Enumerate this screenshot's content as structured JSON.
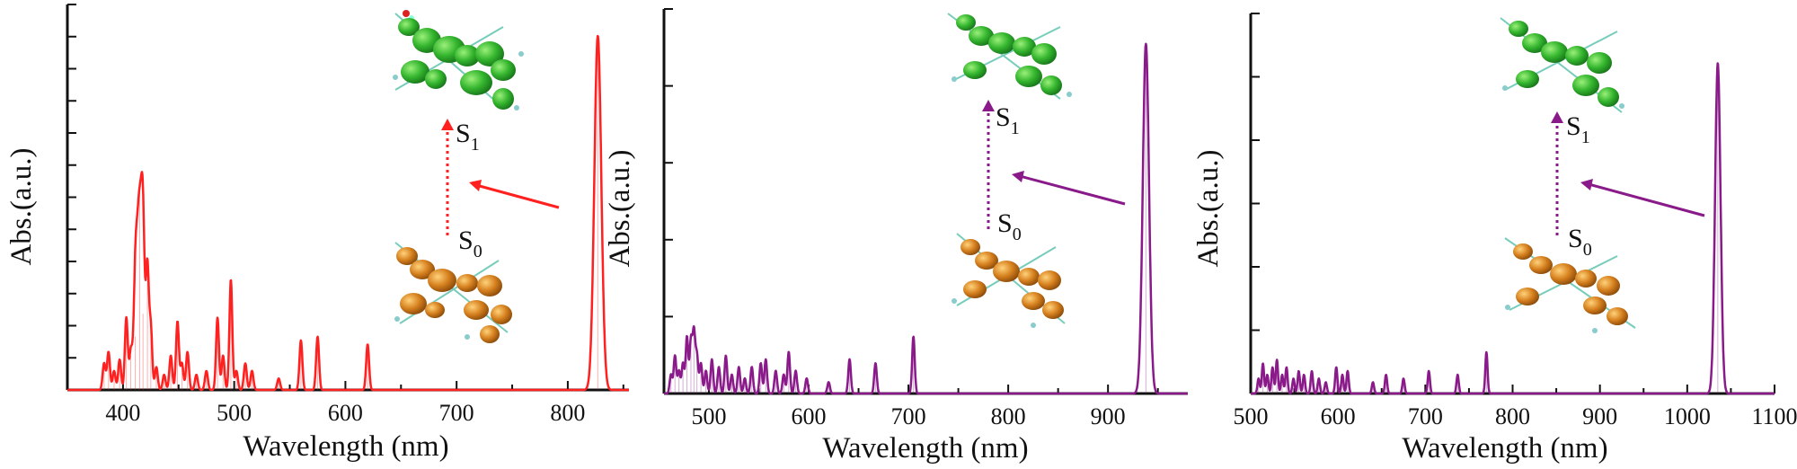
{
  "chart_data": [
    {
      "type": "line",
      "panel": "left",
      "xlabel": "Wavelength (nm)",
      "ylabel": "Abs.(a.u.)",
      "xlim": [
        350,
        855
      ],
      "ylim": [
        0,
        1.0
      ],
      "xticks": [
        400,
        500,
        600,
        700,
        800
      ],
      "y_tick_count": 12,
      "color": "#ff2020",
      "peaks": [
        {
          "x": 383,
          "h": 0.07
        },
        {
          "x": 387,
          "h": 0.1
        },
        {
          "x": 392,
          "h": 0.05
        },
        {
          "x": 397,
          "h": 0.08
        },
        {
          "x": 403,
          "h": 0.19
        },
        {
          "x": 407,
          "h": 0.09
        },
        {
          "x": 411,
          "h": 0.14
        },
        {
          "x": 415,
          "h": 0.52
        },
        {
          "x": 418,
          "h": 0.2
        },
        {
          "x": 422,
          "h": 0.29
        },
        {
          "x": 425,
          "h": 0.16
        },
        {
          "x": 430,
          "h": 0.06
        },
        {
          "x": 437,
          "h": 0.04
        },
        {
          "x": 443,
          "h": 0.09
        },
        {
          "x": 449,
          "h": 0.18
        },
        {
          "x": 453,
          "h": 0.07
        },
        {
          "x": 458,
          "h": 0.1
        },
        {
          "x": 466,
          "h": 0.04
        },
        {
          "x": 475,
          "h": 0.05
        },
        {
          "x": 485,
          "h": 0.19
        },
        {
          "x": 490,
          "h": 0.09
        },
        {
          "x": 497,
          "h": 0.29
        },
        {
          "x": 502,
          "h": 0.05
        },
        {
          "x": 510,
          "h": 0.07
        },
        {
          "x": 516,
          "h": 0.05
        },
        {
          "x": 540,
          "h": 0.03
        },
        {
          "x": 560,
          "h": 0.13
        },
        {
          "x": 575,
          "h": 0.14
        },
        {
          "x": 620,
          "h": 0.12
        },
        {
          "x": 827,
          "h": 0.93
        }
      ],
      "labels": {
        "ground": "S",
        "ground_sub": "0",
        "excited": "S",
        "excited_sub": "1"
      }
    },
    {
      "type": "line",
      "panel": "middle",
      "xlabel": "Wavelength (nm)",
      "ylabel": "Abs.(a.u.)",
      "xlim": [
        455,
        980
      ],
      "ylim": [
        0,
        1.0
      ],
      "xticks": [
        500,
        600,
        700,
        800,
        900
      ],
      "y_tick_count": 5,
      "color": "#8a1a8a",
      "peaks": [
        {
          "x": 462,
          "h": 0.05
        },
        {
          "x": 466,
          "h": 0.1
        },
        {
          "x": 470,
          "h": 0.06
        },
        {
          "x": 474,
          "h": 0.08
        },
        {
          "x": 478,
          "h": 0.15
        },
        {
          "x": 482,
          "h": 0.14
        },
        {
          "x": 485,
          "h": 0.16
        },
        {
          "x": 488,
          "h": 0.1
        },
        {
          "x": 492,
          "h": 0.08
        },
        {
          "x": 497,
          "h": 0.06
        },
        {
          "x": 503,
          "h": 0.09
        },
        {
          "x": 510,
          "h": 0.07
        },
        {
          "x": 517,
          "h": 0.1
        },
        {
          "x": 523,
          "h": 0.05
        },
        {
          "x": 530,
          "h": 0.07
        },
        {
          "x": 536,
          "h": 0.04
        },
        {
          "x": 543,
          "h": 0.07
        },
        {
          "x": 552,
          "h": 0.08
        },
        {
          "x": 557,
          "h": 0.09
        },
        {
          "x": 567,
          "h": 0.06
        },
        {
          "x": 575,
          "h": 0.05
        },
        {
          "x": 580,
          "h": 0.11
        },
        {
          "x": 587,
          "h": 0.06
        },
        {
          "x": 598,
          "h": 0.04
        },
        {
          "x": 620,
          "h": 0.03
        },
        {
          "x": 641,
          "h": 0.09
        },
        {
          "x": 667,
          "h": 0.08
        },
        {
          "x": 705,
          "h": 0.15
        },
        {
          "x": 938,
          "h": 0.92
        }
      ],
      "labels": {
        "ground": "S",
        "ground_sub": "0",
        "excited": "S",
        "excited_sub": "1"
      }
    },
    {
      "type": "line",
      "panel": "right",
      "xlabel": "Wavelength (nm)",
      "ylabel": "Abs.(a.u.)",
      "xlim": [
        500,
        1100
      ],
      "ylim": [
        0,
        1.0
      ],
      "xticks": [
        500,
        600,
        700,
        800,
        900,
        1000,
        1100
      ],
      "y_tick_count": 6,
      "color": "#8a1a8a",
      "peaks": [
        {
          "x": 509,
          "h": 0.04
        },
        {
          "x": 514,
          "h": 0.08
        },
        {
          "x": 519,
          "h": 0.05
        },
        {
          "x": 525,
          "h": 0.07
        },
        {
          "x": 530,
          "h": 0.09
        },
        {
          "x": 536,
          "h": 0.05
        },
        {
          "x": 541,
          "h": 0.07
        },
        {
          "x": 549,
          "h": 0.04
        },
        {
          "x": 555,
          "h": 0.06
        },
        {
          "x": 561,
          "h": 0.05
        },
        {
          "x": 570,
          "h": 0.06
        },
        {
          "x": 578,
          "h": 0.04
        },
        {
          "x": 586,
          "h": 0.03
        },
        {
          "x": 598,
          "h": 0.07
        },
        {
          "x": 605,
          "h": 0.05
        },
        {
          "x": 611,
          "h": 0.06
        },
        {
          "x": 640,
          "h": 0.03
        },
        {
          "x": 655,
          "h": 0.05
        },
        {
          "x": 675,
          "h": 0.04
        },
        {
          "x": 704,
          "h": 0.06
        },
        {
          "x": 737,
          "h": 0.05
        },
        {
          "x": 770,
          "h": 0.11
        },
        {
          "x": 1035,
          "h": 0.88
        }
      ],
      "labels": {
        "ground": "S",
        "ground_sub": "0",
        "excited": "S",
        "excited_sub": "1"
      }
    }
  ]
}
